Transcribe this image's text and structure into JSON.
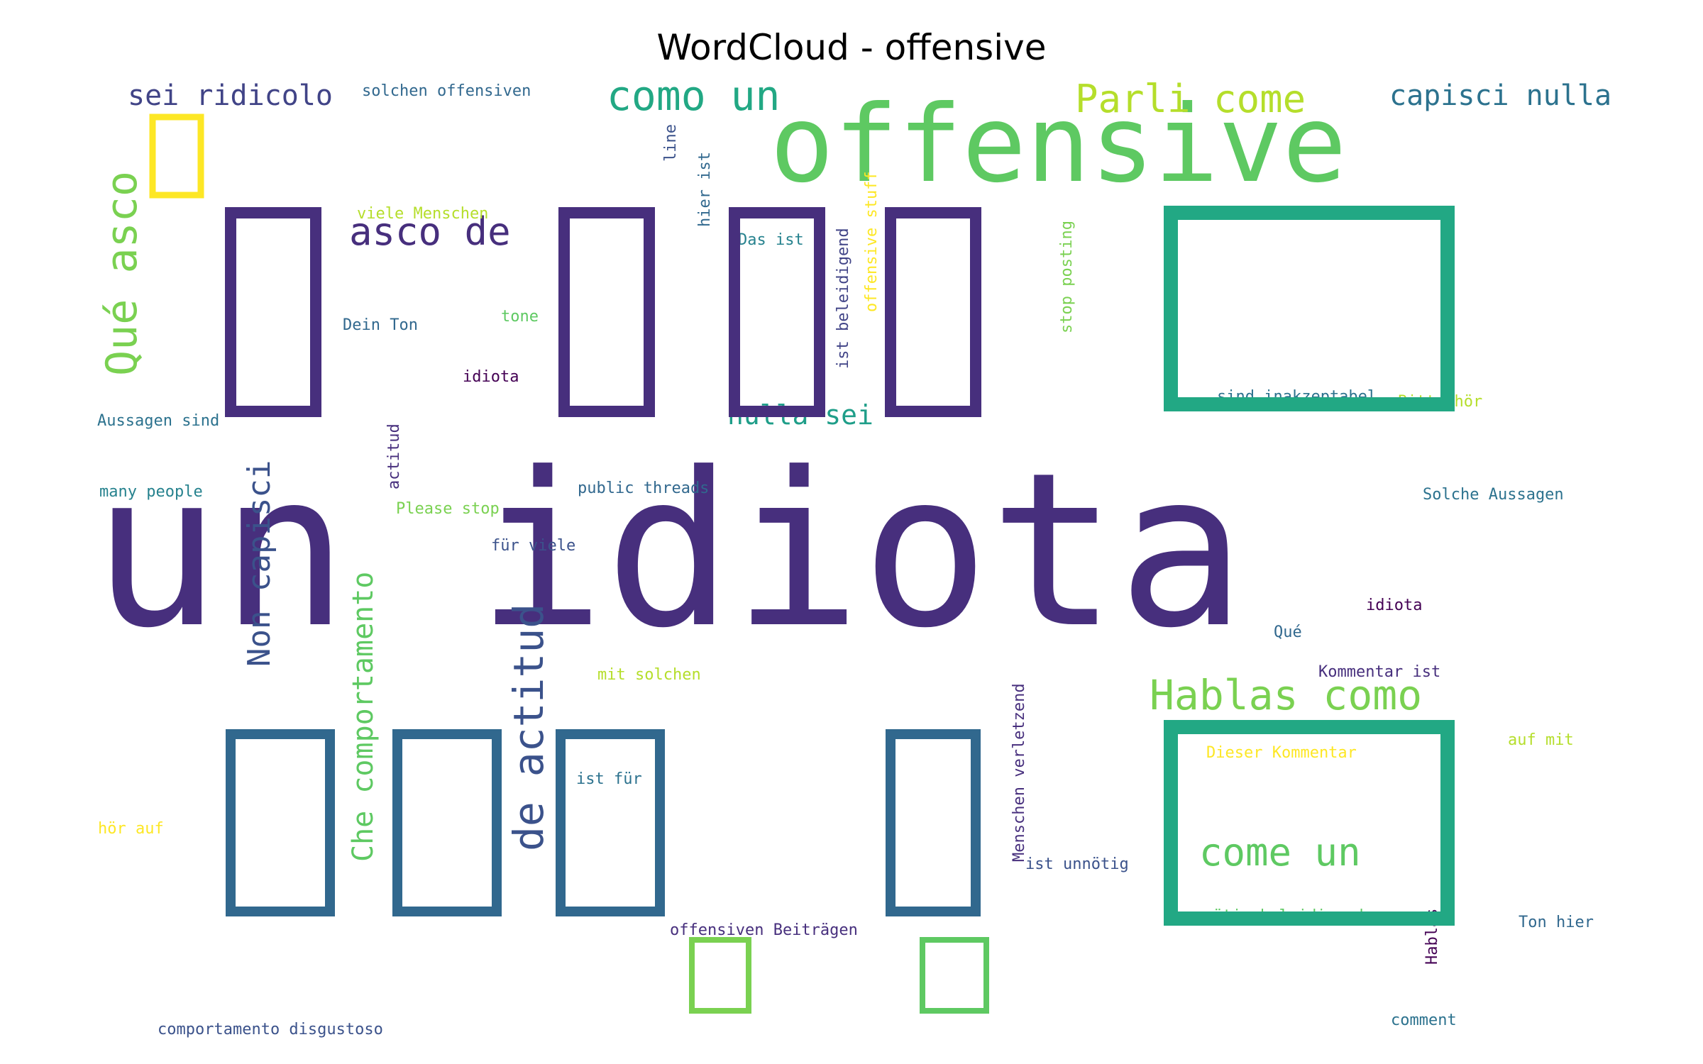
{
  "title": "WordCloud - offensive",
  "chart_data": {
    "type": "wordcloud",
    "title": "WordCloud - offensive",
    "background": "#ffffff",
    "colormap": "viridis",
    "words": [
      {
        "text": "un idiota",
        "size": 100,
        "color": "#472f7d",
        "rotate": 0
      },
      {
        "text": "offensive",
        "size": 82,
        "color": "#5ec962",
        "rotate": 0
      },
      {
        "text": "Hablas como",
        "size": 40,
        "color": "#7ad151",
        "rotate": 0
      },
      {
        "text": "como un",
        "size": 40,
        "color": "#22a884",
        "rotate": 0
      },
      {
        "text": "Parli come",
        "size": 38,
        "color": "#b5de2b",
        "rotate": 0
      },
      {
        "text": "asco de",
        "size": 40,
        "color": "#472f7d",
        "rotate": 0
      },
      {
        "text": "Qué asco",
        "size": 40,
        "color": "#7ad151",
        "rotate": 90
      },
      {
        "text": "de actitud",
        "size": 40,
        "color": "#3b528b",
        "rotate": 90
      },
      {
        "text": "come un",
        "size": 38,
        "color": "#5ec962",
        "rotate": 0
      },
      {
        "text": "capisci nulla",
        "size": 28,
        "color": "#2c728e",
        "rotate": 0
      },
      {
        "text": "sei ridicolo",
        "size": 28,
        "color": "#414487",
        "rotate": 0
      },
      {
        "text": "Non capisci",
        "size": 30,
        "color": "#3b528b",
        "rotate": 90
      },
      {
        "text": "Che comportamento",
        "size": 28,
        "color": "#5ec962",
        "rotate": 90
      },
      {
        "text": "nulla sei",
        "size": 28,
        "color": "#1f9e89",
        "rotate": 0
      },
      {
        "text": "solchen offensiven",
        "size": 16,
        "color": "#31688e",
        "rotate": 0
      },
      {
        "text": "Das ist",
        "size": 16,
        "color": "#26828e",
        "rotate": 0
      },
      {
        "text": "hier ist",
        "size": 16,
        "color": "#31688e",
        "rotate": 90
      },
      {
        "text": "line",
        "size": 16,
        "color": "#3b528b",
        "rotate": 90
      },
      {
        "text": "ist beleidigend",
        "size": 16,
        "color": "#414487",
        "rotate": 90
      },
      {
        "text": "offensive stuff",
        "size": 16,
        "color": "#fde725",
        "rotate": 90
      },
      {
        "text": "stop posting",
        "size": 16,
        "color": "#7ad151",
        "rotate": 90
      },
      {
        "text": "viele Menschen",
        "size": 16,
        "color": "#b5de2b",
        "rotate": 0
      },
      {
        "text": "Dein Ton",
        "size": 16,
        "color": "#31688e",
        "rotate": 0
      },
      {
        "text": "tone",
        "size": 16,
        "color": "#5ec962",
        "rotate": 0
      },
      {
        "text": "idiota",
        "size": 16,
        "color": "#440154",
        "rotate": 0
      },
      {
        "text": "Aussagen sind",
        "size": 16,
        "color": "#2c728e",
        "rotate": 0
      },
      {
        "text": "many people",
        "size": 16,
        "color": "#26828e",
        "rotate": 0
      },
      {
        "text": "actitud",
        "size": 16,
        "color": "#472f7d",
        "rotate": 90
      },
      {
        "text": "public threads",
        "size": 16,
        "color": "#31688e",
        "rotate": 0
      },
      {
        "text": "Please stop",
        "size": 16,
        "color": "#7ad151",
        "rotate": 0
      },
      {
        "text": "für viele",
        "size": 16,
        "color": "#3b528b",
        "rotate": 0
      },
      {
        "text": "sind inakzeptabel",
        "size": 16,
        "color": "#2c728e",
        "rotate": 0
      },
      {
        "text": "Bitte hör",
        "size": 16,
        "color": "#b5de2b",
        "rotate": 0
      },
      {
        "text": "Solche Aussagen",
        "size": 16,
        "color": "#2c728e",
        "rotate": 0
      },
      {
        "text": "idiota",
        "size": 16,
        "color": "#440154",
        "rotate": 0
      },
      {
        "text": "Qué",
        "size": 16,
        "color": "#31688e",
        "rotate": 0
      },
      {
        "text": "mit solchen",
        "size": 16,
        "color": "#b5de2b",
        "rotate": 0
      },
      {
        "text": "Kommentar ist",
        "size": 16,
        "color": "#472f7d",
        "rotate": 0
      },
      {
        "text": "Menschen verletzend",
        "size": 16,
        "color": "#472f7d",
        "rotate": 90
      },
      {
        "text": "Dieser Kommentar",
        "size": 16,
        "color": "#fde725",
        "rotate": 0
      },
      {
        "text": "auf mit",
        "size": 16,
        "color": "#b5de2b",
        "rotate": 0
      },
      {
        "text": "ist für",
        "size": 16,
        "color": "#2c728e",
        "rotate": 0
      },
      {
        "text": "hör auf",
        "size": 16,
        "color": "#fde725",
        "rotate": 0
      },
      {
        "text": "ist unnötig",
        "size": 16,
        "color": "#3b528b",
        "rotate": 0
      },
      {
        "text": "unnötig beleidigend",
        "size": 16,
        "color": "#5ec962",
        "rotate": 0
      },
      {
        "text": "Hablas",
        "size": 16,
        "color": "#440154",
        "rotate": 90
      },
      {
        "text": "Ton hier",
        "size": 16,
        "color": "#31688e",
        "rotate": 0
      },
      {
        "text": "offensiven Beiträgen",
        "size": 16,
        "color": "#472f7d",
        "rotate": 0
      },
      {
        "text": "comportamento disgustoso",
        "size": 16,
        "color": "#3b528b",
        "rotate": 0
      },
      {
        "text": "comment",
        "size": 16,
        "color": "#2c728e",
        "rotate": 0
      }
    ],
    "missing_glyph_boxes": [
      {
        "w": "large",
        "color": "#472f7d"
      },
      {
        "w": "large",
        "color": "#472f7d"
      },
      {
        "w": "large",
        "color": "#472f7d"
      },
      {
        "w": "large",
        "color": "#472f7d"
      },
      {
        "w": "large",
        "color": "#22a884"
      },
      {
        "w": "large",
        "color": "#22a884"
      },
      {
        "w": "large",
        "color": "#31688e"
      },
      {
        "w": "large",
        "color": "#31688e"
      },
      {
        "w": "large",
        "color": "#31688e"
      },
      {
        "w": "large",
        "color": "#31688e"
      },
      {
        "w": "medium",
        "color": "#fde725"
      },
      {
        "w": "medium",
        "color": "#7ad151"
      },
      {
        "w": "medium",
        "color": "#5ec962"
      }
    ]
  }
}
